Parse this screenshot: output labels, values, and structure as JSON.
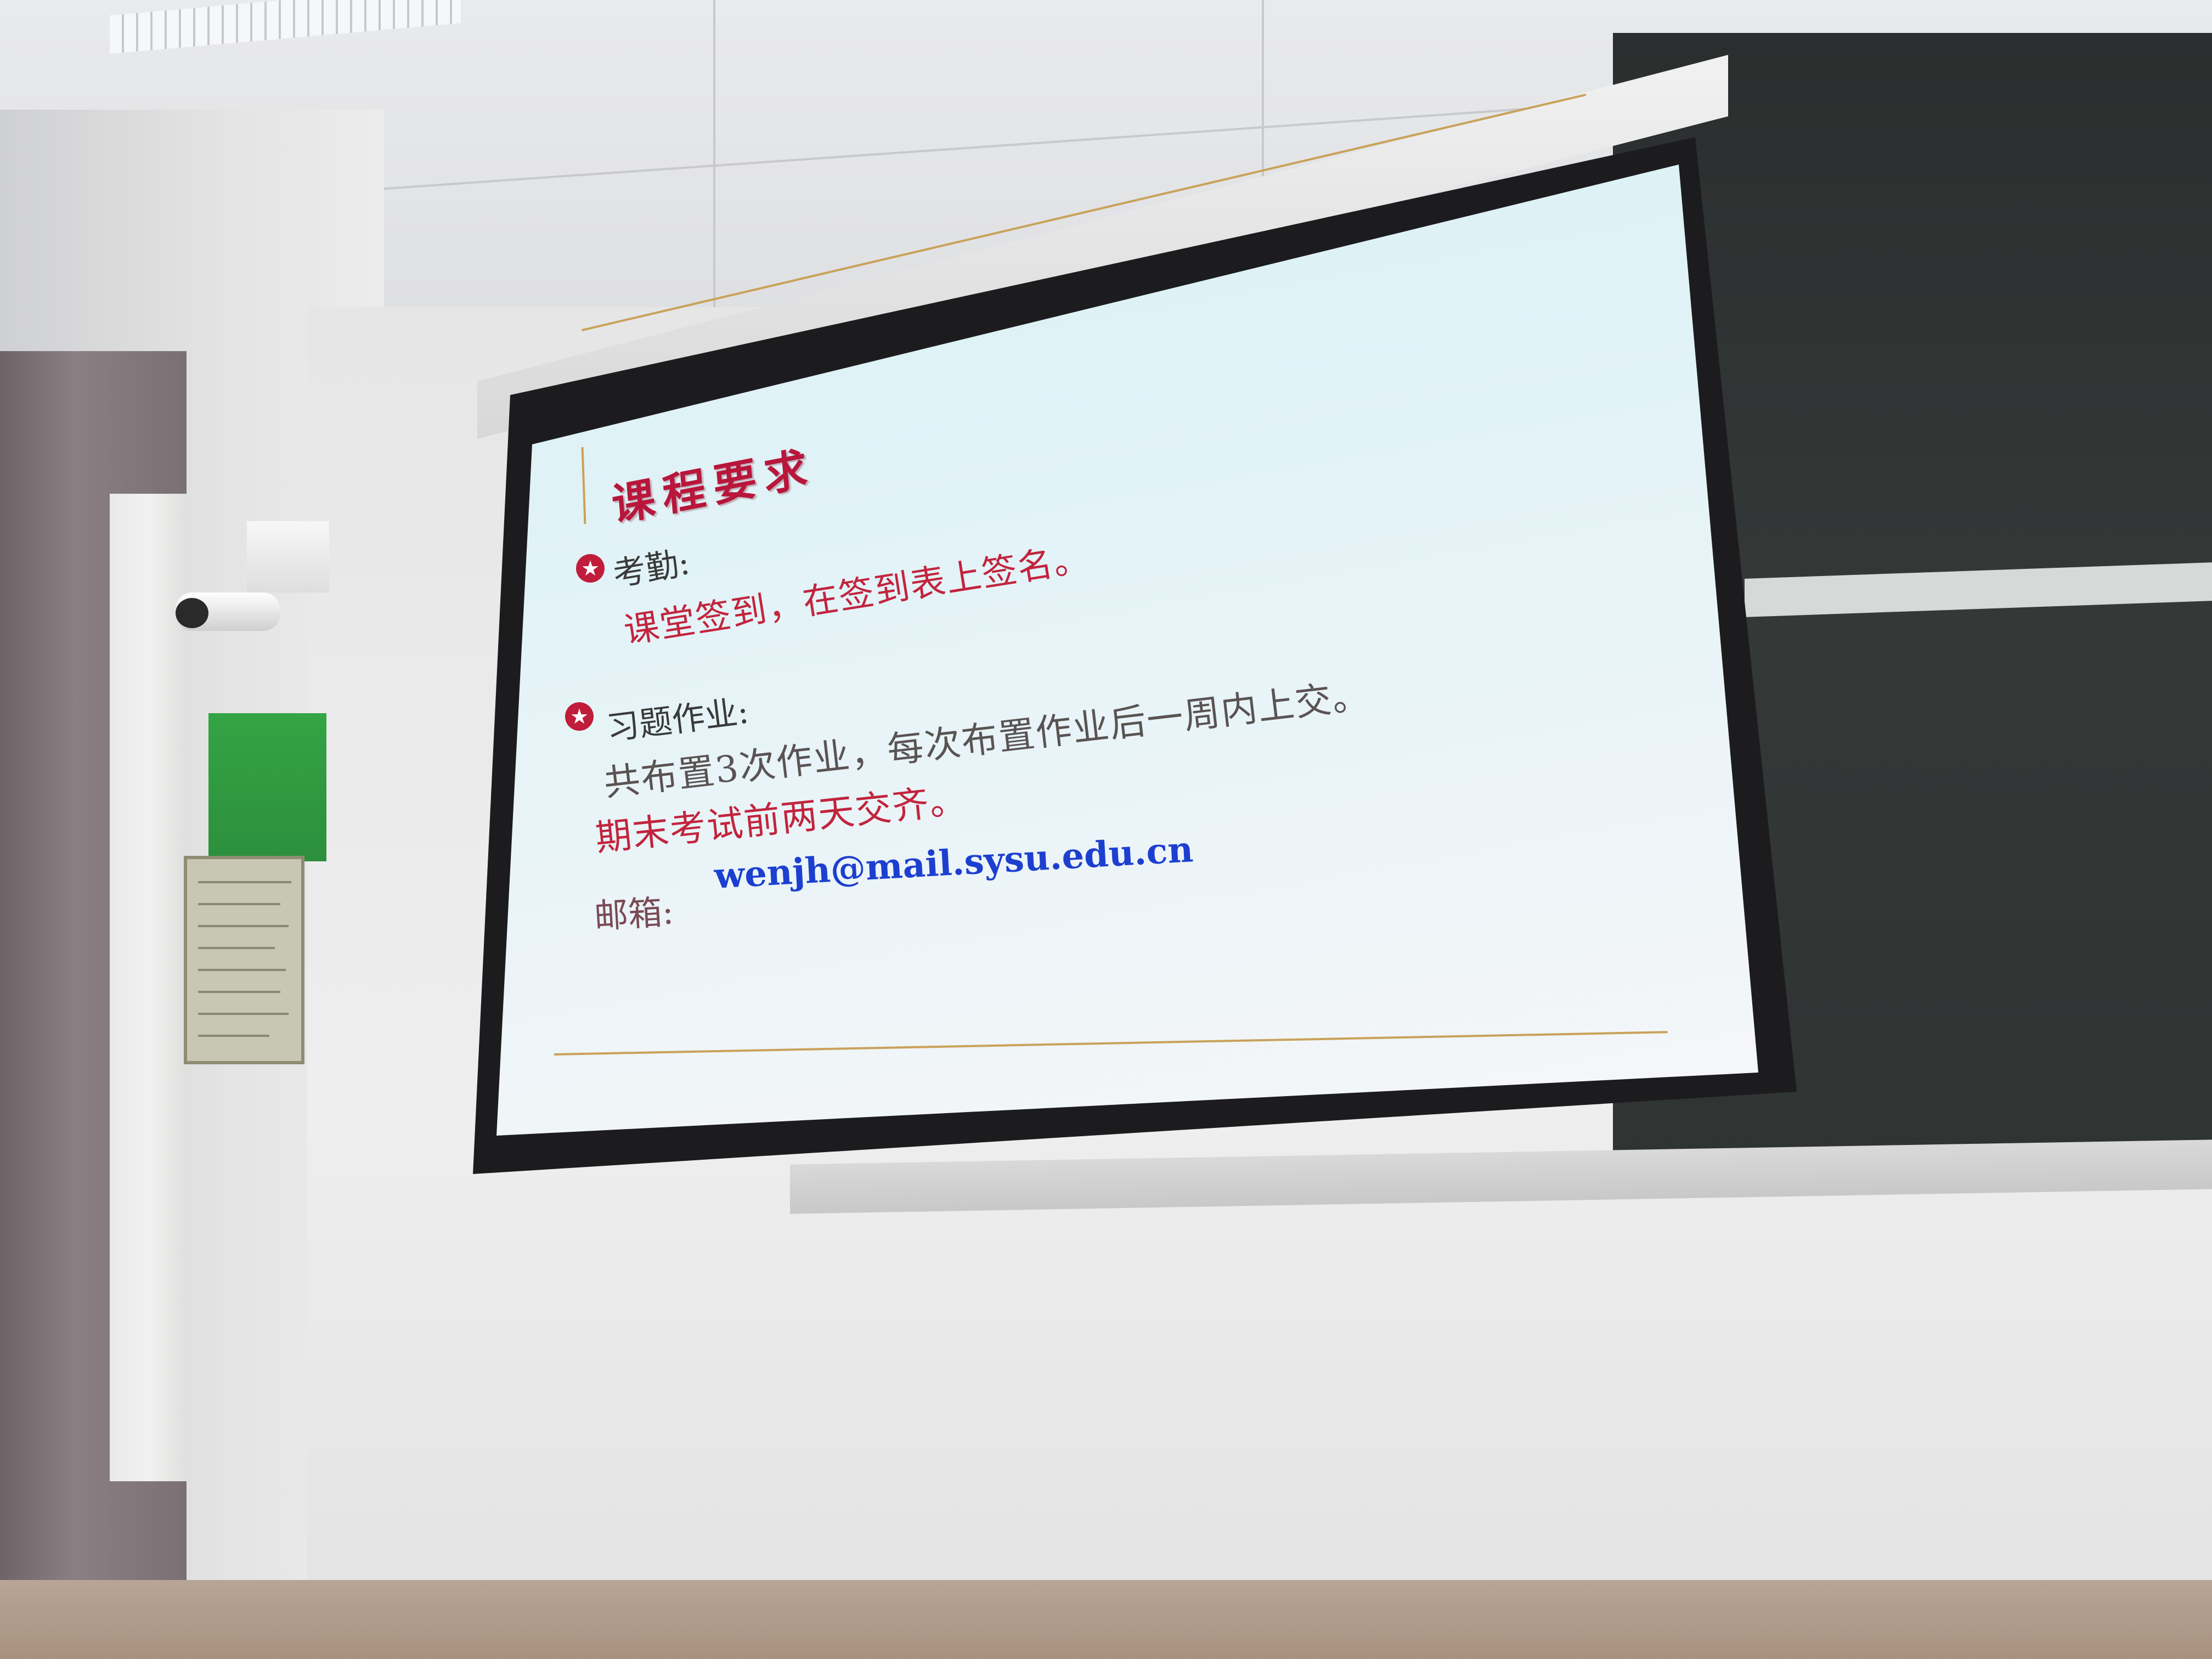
{
  "slide": {
    "title": "课程要求",
    "attendance_heading": "考勤:",
    "attendance_body": "课堂签到，在签到表上签名。",
    "homework_heading": "习题作业:",
    "homework_line1": "共布置3次作业，每次布置作业后一周内上交。",
    "homework_line2": "期末考试前两天交齐。",
    "email_label": "邮箱:",
    "email_value": "wenjh@mail.sysu.edu.cn"
  },
  "colors": {
    "title": "#b8163b",
    "emphasis_red": "#c2243d",
    "email_blue": "#1d3fd0",
    "rule_gold": "#c9a25a"
  },
  "icons": {
    "bullet": "star-circle-icon"
  }
}
